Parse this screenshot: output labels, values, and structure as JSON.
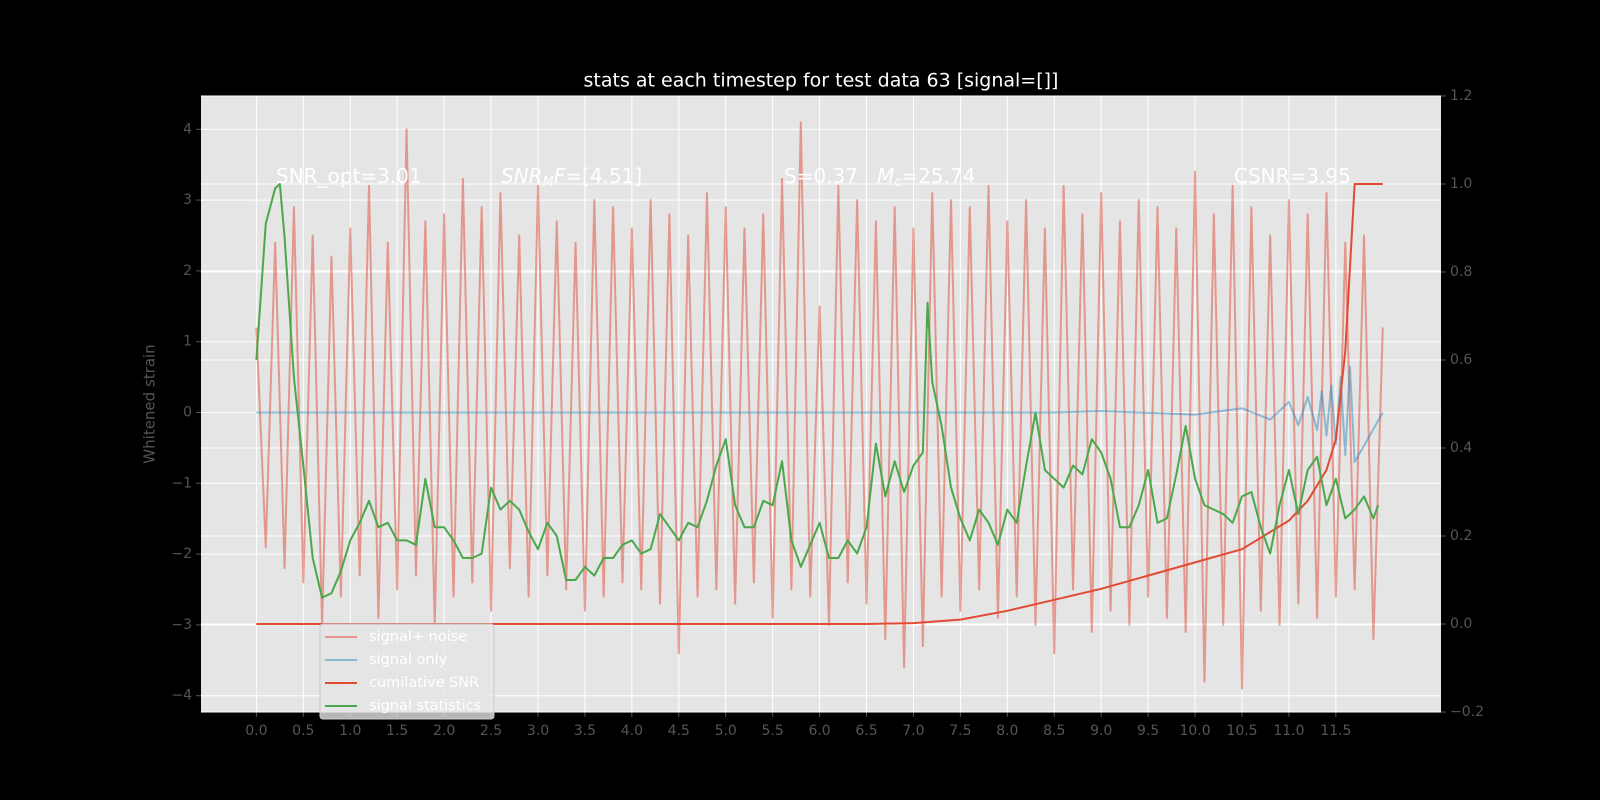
{
  "chart_data": {
    "type": "line",
    "title": "stats at each timestep for test data 63 [signal=[]]",
    "ylabel": "Whitened strain",
    "grid": true,
    "legend_loc": "lower left",
    "xlim": [
      -0.59,
      12.62
    ],
    "ylim": [
      -4.23,
      4.47
    ],
    "y2lim": [
      -0.2,
      1.2
    ],
    "xticks": [
      {
        "value": 0,
        "label": "0.0"
      },
      0.5,
      {
        "value": 1,
        "label": "1.0"
      },
      1.5,
      {
        "value": 2,
        "label": "2.0"
      },
      2.5,
      {
        "value": 3,
        "label": "3.0"
      },
      3.5,
      {
        "value": 4,
        "label": "4.0"
      },
      4.5,
      {
        "value": 5,
        "label": "5.0"
      },
      5.5,
      {
        "value": 6,
        "label": "6.0"
      },
      6.5,
      {
        "value": 7,
        "label": "7.0"
      },
      7.5,
      {
        "value": 8,
        "label": "8.0"
      },
      8.5,
      {
        "value": 9,
        "label": "9.0"
      },
      9.5,
      {
        "value": 10,
        "label": "10.0"
      },
      10.5,
      {
        "value": 11,
        "label": "11.0"
      },
      11.5
    ],
    "yticks": [
      {
        "value": -4,
        "label": "−4"
      },
      {
        "value": -3,
        "label": "−3"
      },
      {
        "value": -2,
        "label": "−2"
      },
      {
        "value": -1,
        "label": "−1"
      },
      0,
      1,
      2,
      3,
      4
    ],
    "y2ticks": [
      {
        "value": -0.2,
        "label": "−0.2"
      },
      {
        "value": 0,
        "label": "0.0"
      },
      0.2,
      0.4,
      0.6,
      0.8,
      {
        "value": 1,
        "label": "1.0"
      },
      1.2
    ],
    "annotations": [
      [
        {
          "text": "SNR_opt=3.01",
          "style": "normal"
        }
      ],
      [
        {
          "text": "SNR",
          "style": "italic"
        },
        {
          "text": "M",
          "style": "sub"
        },
        {
          "text": "F",
          "style": "italic"
        },
        {
          "text": "=[4.51]",
          "style": "normal"
        }
      ],
      [
        {
          "text": "S=0.37",
          "style": "normal"
        }
      ],
      [
        {
          "text": "M",
          "style": "italic"
        },
        {
          "text": "c",
          "style": "sub"
        },
        {
          "text": "=25.74",
          "style": "normal"
        }
      ],
      [
        {
          "text": "CSNR=3.95",
          "style": "normal"
        }
      ]
    ],
    "series": [
      {
        "name": "signal+ noise",
        "color": "#E24A33",
        "opacity": 0.5,
        "x": [
          0,
          0.1,
          0.2,
          0.3,
          0.4,
          0.5,
          0.6,
          0.7,
          0.8,
          0.9,
          1,
          1.1,
          1.2,
          1.3,
          1.4,
          1.5,
          1.6,
          1.7,
          1.8,
          1.9,
          2,
          2.1,
          2.2,
          2.3,
          2.4,
          2.5,
          2.6,
          2.7,
          2.8,
          2.9,
          3,
          3.1,
          3.2,
          3.3,
          3.4,
          3.5,
          3.6,
          3.7,
          3.8,
          3.9,
          4,
          4.1,
          4.2,
          4.3,
          4.4,
          4.5,
          4.6,
          4.7,
          4.8,
          4.9,
          5,
          5.1,
          5.2,
          5.3,
          5.4,
          5.5,
          5.6,
          5.7,
          5.8,
          5.9,
          6,
          6.1,
          6.2,
          6.3,
          6.4,
          6.5,
          6.6,
          6.7,
          6.8,
          6.9,
          7,
          7.1,
          7.2,
          7.3,
          7.4,
          7.5,
          7.6,
          7.7,
          7.8,
          7.9,
          8,
          8.1,
          8.2,
          8.3,
          8.4,
          8.5,
          8.6,
          8.7,
          8.8,
          8.9,
          9,
          9.1,
          9.2,
          9.3,
          9.4,
          9.5,
          9.6,
          9.7,
          9.8,
          9.9,
          10,
          10.1,
          10.2,
          10.3,
          10.4,
          10.5,
          10.6,
          10.7,
          10.8,
          10.9,
          11,
          11.1,
          11.2,
          11.3,
          11.4,
          11.5,
          11.6,
          11.7,
          11.8,
          11.9,
          12
        ],
        "values": [
          1.2,
          -1.9,
          2.4,
          -2.2,
          2.9,
          -2.4,
          2.5,
          -3.0,
          2.2,
          -2.6,
          2.6,
          -2.3,
          3.2,
          -2.9,
          2.4,
          -2.5,
          4.0,
          -2.3,
          2.7,
          -3.0,
          2.8,
          -2.6,
          3.3,
          -2.4,
          2.9,
          -2.8,
          3.1,
          -2.2,
          2.5,
          -2.6,
          3.2,
          -2.3,
          2.7,
          -2.5,
          2.4,
          -2.8,
          3.0,
          -2.6,
          2.9,
          -2.4,
          2.6,
          -2.5,
          3.0,
          -2.7,
          2.8,
          -3.4,
          2.5,
          -2.6,
          3.1,
          -2.5,
          2.9,
          -2.7,
          2.6,
          -2.4,
          2.8,
          -2.9,
          3.3,
          -2.5,
          4.1,
          -2.6,
          1.5,
          -3.0,
          3.2,
          -2.4,
          3.0,
          -2.7,
          2.7,
          -3.2,
          2.9,
          -3.6,
          2.6,
          -3.3,
          3.1,
          -2.6,
          3.0,
          -2.8,
          2.9,
          -2.5,
          3.2,
          -2.9,
          2.7,
          -2.6,
          3.0,
          -3.0,
          2.6,
          -3.4,
          3.2,
          -2.5,
          2.8,
          -3.1,
          3.1,
          -2.8,
          2.7,
          -3.0,
          3.0,
          -2.6,
          2.9,
          -2.9,
          2.6,
          -3.1,
          3.4,
          -3.8,
          2.8,
          -3.0,
          3.2,
          -3.9,
          2.9,
          -2.8,
          2.5,
          -3.0,
          3.0,
          -2.7,
          2.8,
          -2.9,
          3.1,
          -2.6,
          2.4,
          -2.5,
          2.5,
          -3.2,
          1.2
        ]
      },
      {
        "name": "signal only",
        "color": "#348ABD",
        "opacity": 0.5,
        "x": [
          0,
          8.5,
          9,
          10,
          10.5,
          10.8,
          11,
          11.1,
          11.2,
          11.3,
          11.35,
          11.4,
          11.45,
          11.5,
          11.55,
          11.6,
          11.65,
          11.7,
          12
        ],
        "values": [
          0,
          0,
          0.02,
          -0.03,
          0.06,
          -0.1,
          0.15,
          -0.18,
          0.22,
          -0.25,
          0.3,
          -0.33,
          0.38,
          -0.45,
          0.5,
          -0.6,
          0.65,
          -0.7,
          0
        ]
      },
      {
        "name": "cumilative SNR",
        "color": "#E24A33",
        "opacity": 1,
        "axis": "y2",
        "x": [
          0,
          6.5,
          7,
          7.5,
          8,
          8.5,
          9,
          9.5,
          10,
          10.5,
          11,
          11.2,
          11.4,
          11.5,
          11.6,
          11.65,
          11.7,
          12
        ],
        "values": [
          0,
          0,
          0.002,
          0.01,
          0.03,
          0.055,
          0.08,
          0.11,
          0.14,
          0.17,
          0.235,
          0.28,
          0.35,
          0.42,
          0.62,
          0.81,
          1,
          1
        ]
      },
      {
        "name": "signal statistics",
        "color": "#4aa84a",
        "opacity": 1,
        "axis": "y2",
        "x": [
          0,
          0.1,
          0.2,
          0.25,
          0.3,
          0.4,
          0.5,
          0.6,
          0.7,
          0.8,
          0.9,
          1,
          1.1,
          1.2,
          1.3,
          1.4,
          1.5,
          1.6,
          1.7,
          1.8,
          1.9,
          2,
          2.1,
          2.2,
          2.3,
          2.4,
          2.5,
          2.6,
          2.7,
          2.8,
          2.9,
          3,
          3.1,
          3.2,
          3.3,
          3.4,
          3.5,
          3.6,
          3.7,
          3.8,
          3.9,
          4,
          4.1,
          4.2,
          4.3,
          4.4,
          4.5,
          4.6,
          4.7,
          4.8,
          4.9,
          5,
          5.1,
          5.2,
          5.3,
          5.4,
          5.5,
          5.6,
          5.7,
          5.8,
          5.9,
          6,
          6.1,
          6.2,
          6.3,
          6.4,
          6.5,
          6.6,
          6.7,
          6.8,
          6.9,
          7,
          7.1,
          7.15,
          7.2,
          7.3,
          7.4,
          7.5,
          7.6,
          7.7,
          7.8,
          7.9,
          8,
          8.1,
          8.2,
          8.3,
          8.4,
          8.5,
          8.6,
          8.7,
          8.8,
          8.9,
          9,
          9.1,
          9.2,
          9.3,
          9.4,
          9.5,
          9.6,
          9.7,
          9.8,
          9.9,
          10,
          10.1,
          10.2,
          10.3,
          10.4,
          10.5,
          10.6,
          10.7,
          10.8,
          10.9,
          11,
          11.1,
          11.2,
          11.3,
          11.4,
          11.5,
          11.6,
          11.7,
          11.8,
          11.9,
          11.95
        ],
        "values": [
          0.6,
          0.91,
          0.99,
          1,
          0.88,
          0.56,
          0.36,
          0.15,
          0.06,
          0.07,
          0.12,
          0.19,
          0.23,
          0.28,
          0.22,
          0.23,
          0.19,
          0.19,
          0.18,
          0.33,
          0.22,
          0.22,
          0.19,
          0.15,
          0.15,
          0.16,
          0.31,
          0.26,
          0.28,
          0.26,
          0.21,
          0.17,
          0.23,
          0.2,
          0.1,
          0.1,
          0.13,
          0.11,
          0.15,
          0.15,
          0.18,
          0.19,
          0.16,
          0.17,
          0.25,
          0.22,
          0.19,
          0.23,
          0.22,
          0.28,
          0.36,
          0.42,
          0.27,
          0.22,
          0.22,
          0.28,
          0.27,
          0.37,
          0.19,
          0.13,
          0.18,
          0.23,
          0.15,
          0.15,
          0.19,
          0.16,
          0.22,
          0.41,
          0.29,
          0.37,
          0.3,
          0.36,
          0.39,
          0.73,
          0.55,
          0.45,
          0.31,
          0.24,
          0.19,
          0.26,
          0.23,
          0.18,
          0.26,
          0.23,
          0.36,
          0.48,
          0.35,
          0.33,
          0.31,
          0.36,
          0.34,
          0.42,
          0.39,
          0.33,
          0.22,
          0.22,
          0.27,
          0.35,
          0.23,
          0.24,
          0.34,
          0.45,
          0.33,
          0.27,
          0.26,
          0.25,
          0.23,
          0.29,
          0.3,
          0.22,
          0.16,
          0.27,
          0.35,
          0.25,
          0.35,
          0.38,
          0.27,
          0.33,
          0.24,
          0.26,
          0.29,
          0.24,
          0.27
        ]
      }
    ]
  }
}
